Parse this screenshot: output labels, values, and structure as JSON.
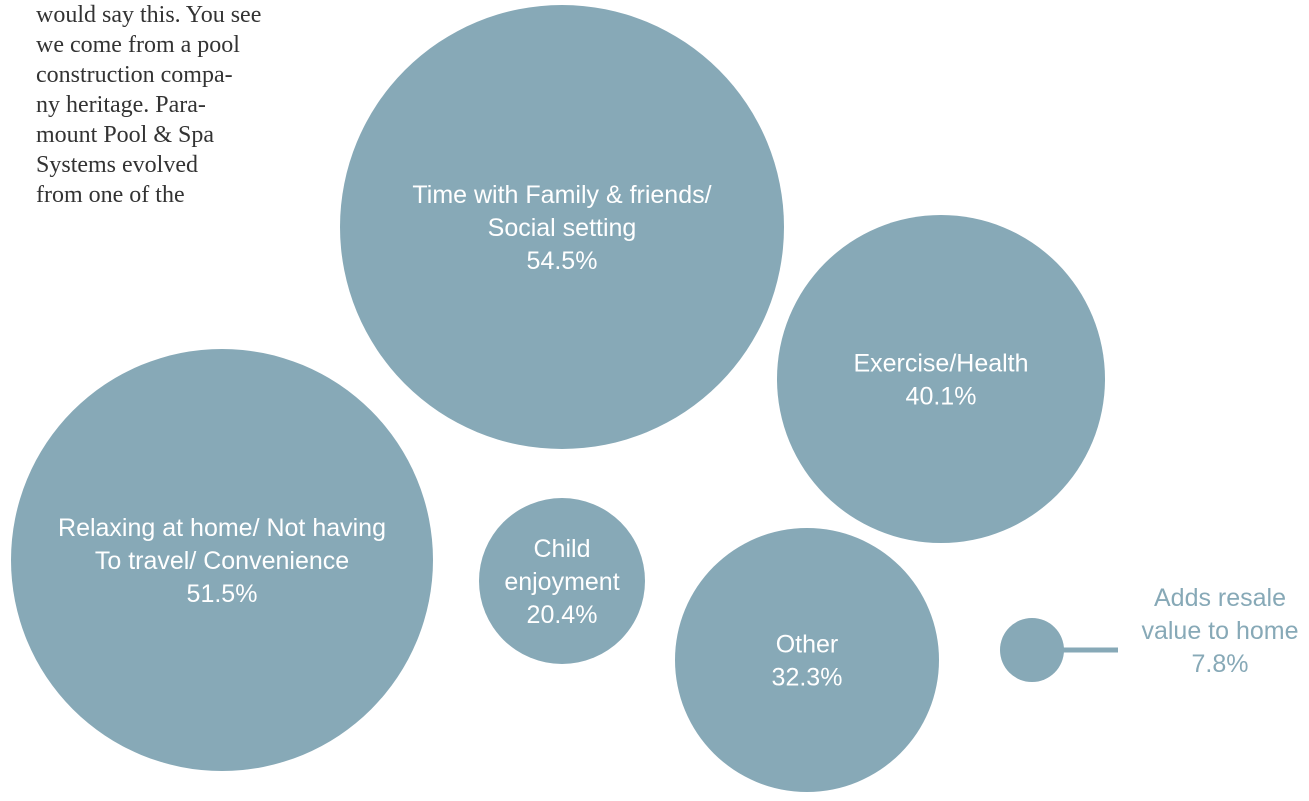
{
  "article": {
    "lines": [
      "would say this.  You see",
      "we come from a pool",
      "construction compa-",
      "ny heritage.  Para-",
      "mount Pool & Spa",
      "Systems    evolved",
      "from  one  of  the"
    ]
  },
  "colors": {
    "bubble": "#87a9b7",
    "bubble_text": "#ffffff",
    "body_text": "#333333"
  },
  "chart_data": {
    "type": "bubble",
    "value_unit": "%",
    "bubbles": [
      {
        "id": "family",
        "label_lines": [
          "Time with Family & friends/",
          "Social setting"
        ],
        "value": 54.5,
        "value_label": "54.5%"
      },
      {
        "id": "relaxing",
        "label_lines": [
          "Relaxing at home/ Not having",
          "To travel/ Convenience"
        ],
        "value": 51.5,
        "value_label": "51.5%"
      },
      {
        "id": "exercise",
        "label_lines": [
          "Exercise/Health"
        ],
        "value": 40.1,
        "value_label": "40.1%"
      },
      {
        "id": "other",
        "label_lines": [
          "Other"
        ],
        "value": 32.3,
        "value_label": "32.3%"
      },
      {
        "id": "child",
        "label_lines": [
          "Child",
          "enjoyment"
        ],
        "value": 20.4,
        "value_label": "20.4%"
      },
      {
        "id": "resale",
        "label_lines": [
          "Adds resale",
          "value to home"
        ],
        "value": 7.8,
        "value_label": "7.8%",
        "label_outside": true
      }
    ]
  }
}
